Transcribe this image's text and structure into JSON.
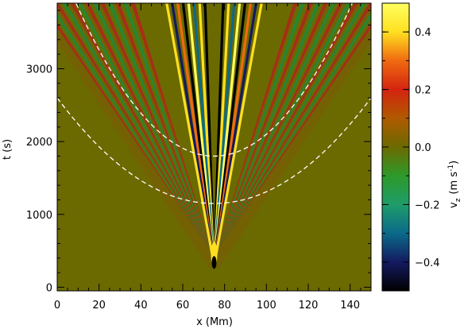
{
  "chart_data": {
    "type": "heatmap",
    "title": "",
    "xlabel": "x (Mm)",
    "ylabel": "t (s)",
    "xlim": [
      0,
      150
    ],
    "ylim": [
      -50,
      3900
    ],
    "x_ticks": [
      0,
      20,
      40,
      60,
      80,
      100,
      120,
      140
    ],
    "y_ticks": [
      0,
      1000,
      2000,
      3000
    ],
    "source_x": 75,
    "source_t": 300,
    "inner_wave_speed_Mm_per_s": 0.0063,
    "outer_wave_speed_Mm_per_s": 0.024,
    "reference_curves_style": "white dashed",
    "reference_curves": [
      {
        "x_left": 9,
        "t_at_x_left": 3900,
        "x_right": 141,
        "t_at_x_right": 3900
      },
      {
        "x_left": 0,
        "t_at_x_left": 2600,
        "x_right": 150,
        "t_at_x_right": 2600
      }
    ],
    "colorbar": {
      "label_main": "v",
      "label_sub": "z",
      "label_units": "(m s",
      "label_sup": "-1",
      "label_close": ")",
      "range": [
        -0.5,
        0.5
      ],
      "ticks": [
        -0.4,
        -0.2,
        0.0,
        0.2,
        0.4
      ],
      "tick_labels": [
        "−0.4",
        "−0.2",
        "0.0",
        "0.2",
        "0.4"
      ],
      "colormap": [
        "#000000",
        "#141a60",
        "#0a6a8a",
        "#1f9c6a",
        "#2d9a2a",
        "#6b6a00",
        "#b05a00",
        "#d42410",
        "#f06a10",
        "#ffe020",
        "#ffff60"
      ]
    },
    "background_color": "#6b6a00"
  }
}
